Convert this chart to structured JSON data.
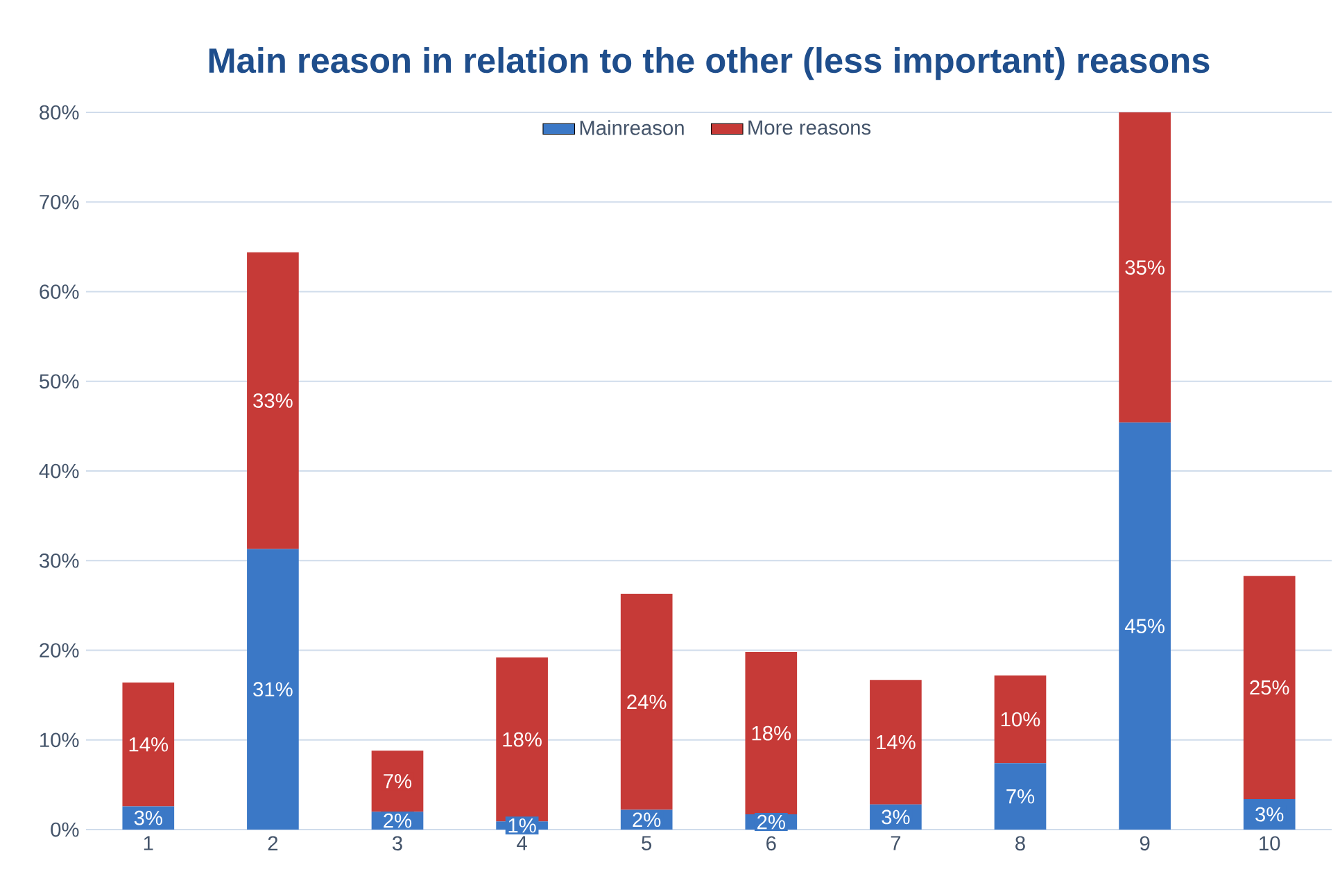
{
  "chart_data": {
    "type": "bar",
    "title": "Main reason in relation to the other (less important) reasons",
    "categories": [
      "1",
      "2",
      "3",
      "4",
      "5",
      "6",
      "7",
      "8",
      "9",
      "10"
    ],
    "stacked": true,
    "series": [
      {
        "name": "Mainreason",
        "color": "#3b78c6",
        "values": [
          2.6,
          31.3,
          2.0,
          0.9,
          2.2,
          1.7,
          2.8,
          7.4,
          45.4,
          3.4
        ],
        "value_labels": [
          "3%",
          "31%",
          "2%",
          "1%",
          "2%",
          "2%",
          "3%",
          "7%",
          "45%",
          "3%"
        ]
      },
      {
        "name": "More reasons",
        "color": "#c63a37",
        "values": [
          13.8,
          33.1,
          6.8,
          18.3,
          24.1,
          18.1,
          13.9,
          9.8,
          34.6,
          24.9
        ],
        "value_labels": [
          "14%",
          "33%",
          "7%",
          "18%",
          "24%",
          "18%",
          "14%",
          "10%",
          "35%",
          "25%"
        ]
      }
    ],
    "ylim": [
      0,
      80
    ],
    "yticks": [
      {
        "value": 0,
        "label": "0%"
      },
      {
        "value": 10,
        "label": "10%"
      },
      {
        "value": 20,
        "label": "20%"
      },
      {
        "value": 30,
        "label": "30%"
      },
      {
        "value": 40,
        "label": "40%"
      },
      {
        "value": 50,
        "label": "50%"
      },
      {
        "value": 60,
        "label": "60%"
      },
      {
        "value": 70,
        "label": "70%"
      },
      {
        "value": 80,
        "label": "80%"
      }
    ],
    "grid": "y",
    "legend": "top"
  }
}
